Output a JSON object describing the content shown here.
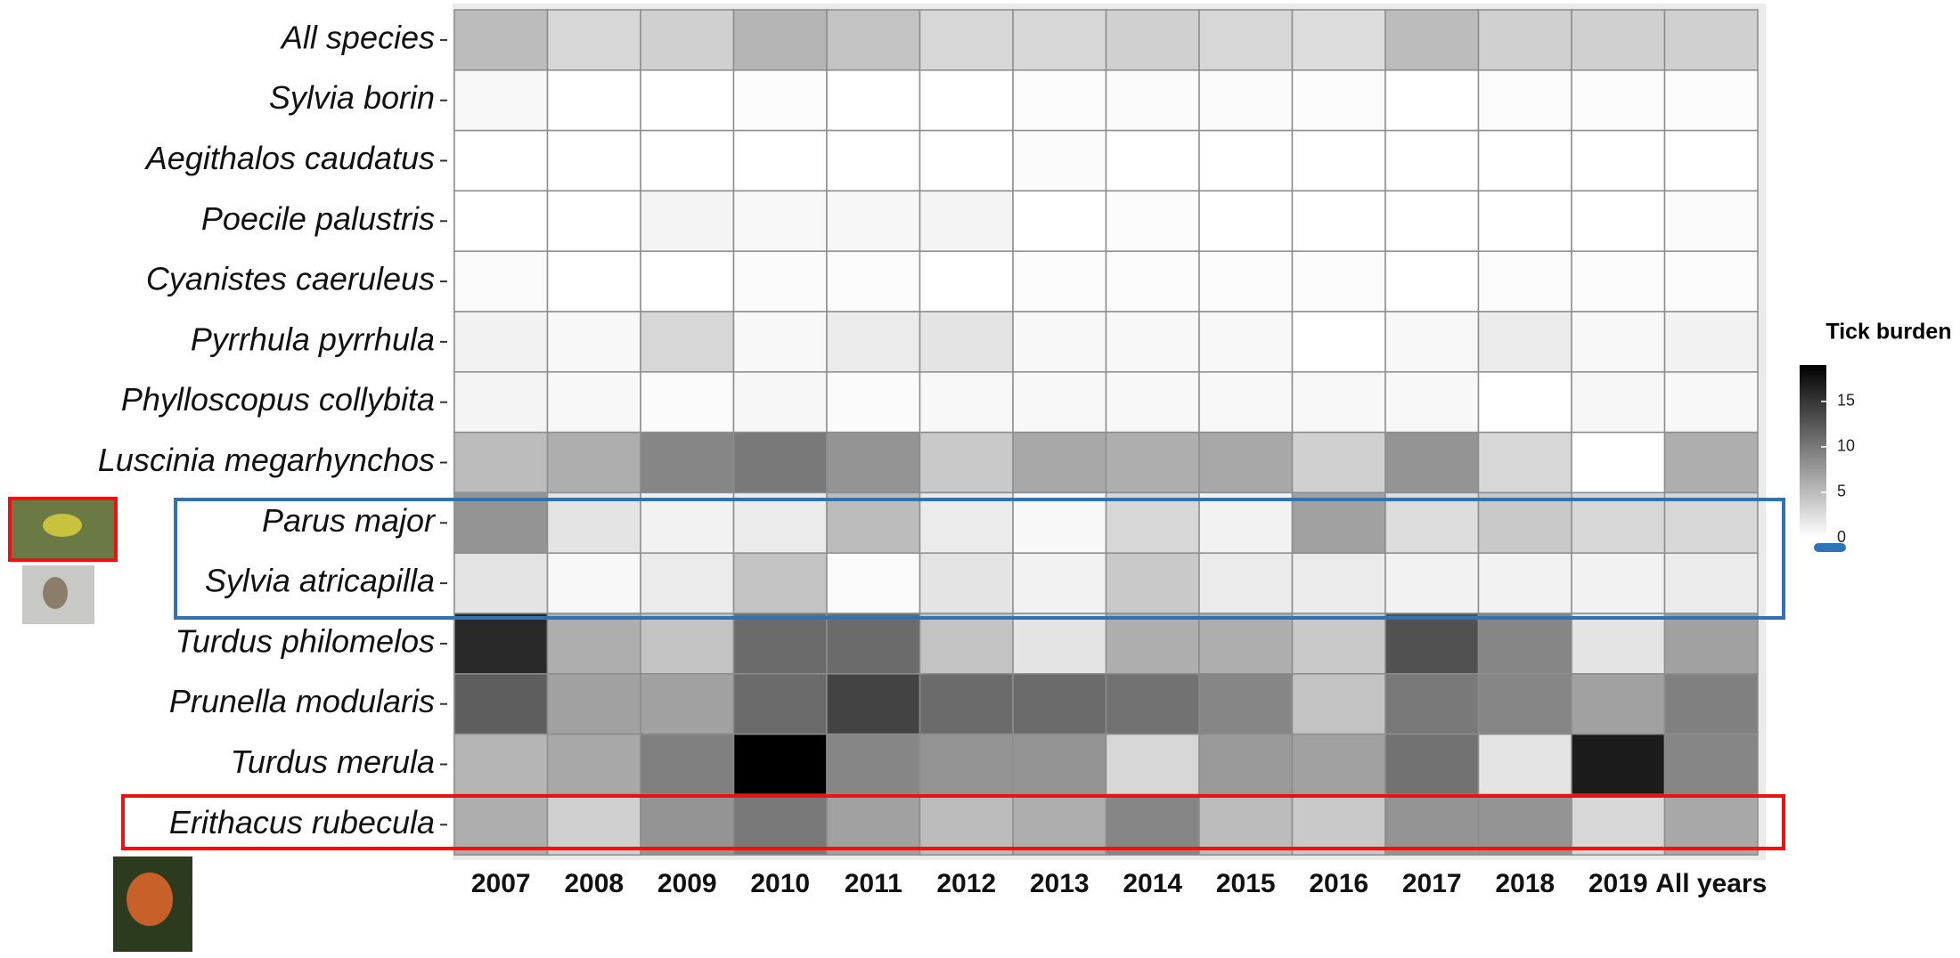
{
  "chart_data": {
    "type": "heatmap",
    "legend_title": "Tick burden",
    "categories": [
      "2007",
      "2008",
      "2009",
      "2010",
      "2011",
      "2012",
      "2013",
      "2014",
      "2015",
      "2016",
      "2017",
      "2018",
      "2019",
      "All years"
    ],
    "series": [
      {
        "name": "All species",
        "values": [
          5,
          3,
          3.5,
          5.5,
          4.5,
          3,
          3,
          3.5,
          3,
          2.5,
          5,
          3.5,
          3.5,
          3.5
        ]
      },
      {
        "name": "Sylvia borin",
        "values": [
          0.5,
          0,
          0,
          0.2,
          0,
          0,
          0.2,
          0.3,
          0.3,
          0.2,
          0,
          0.2,
          0.2,
          0.2
        ]
      },
      {
        "name": "Aegithalos caudatus",
        "values": [
          0,
          0,
          0,
          0,
          0,
          0,
          0.3,
          0,
          0,
          0,
          0,
          0,
          0,
          0
        ]
      },
      {
        "name": "Poecile palustris",
        "values": [
          0,
          0,
          0.8,
          0.5,
          0.6,
          0.8,
          0,
          0.2,
          0,
          0,
          0,
          0,
          0,
          0.3
        ]
      },
      {
        "name": "Cyanistes caeruleus",
        "values": [
          0.3,
          0,
          0,
          0.3,
          0.2,
          0,
          0.2,
          0.2,
          0.2,
          0.2,
          0,
          0.2,
          0.2,
          0.2
        ]
      },
      {
        "name": "Pyrrhula pyrrhula",
        "values": [
          1,
          0.5,
          3,
          0.5,
          1.5,
          2,
          0.5,
          0.5,
          0.5,
          0,
          0.5,
          1.5,
          0.5,
          1
        ]
      },
      {
        "name": "Phylloscopus collybita",
        "values": [
          0.8,
          0.5,
          0.3,
          0.6,
          0.3,
          0.5,
          0.5,
          0.5,
          0.5,
          0.5,
          0.5,
          0,
          0.6,
          0.5
        ]
      },
      {
        "name": "Luscinia megarhynchos",
        "values": [
          5,
          6,
          9,
          10,
          8,
          4,
          6.5,
          6,
          6.5,
          3.5,
          8,
          3,
          0,
          6
        ]
      },
      {
        "name": "Parus major",
        "values": [
          8,
          2,
          1,
          1.5,
          5,
          1.5,
          0.5,
          3,
          1,
          7,
          2.5,
          4,
          3,
          3
        ]
      },
      {
        "name": "Sylvia atricapilla",
        "values": [
          2,
          0.5,
          1.5,
          4.5,
          0.3,
          2,
          1,
          4,
          1.5,
          1.5,
          1,
          1,
          1,
          1.5
        ]
      },
      {
        "name": "Turdus philomelos",
        "values": [
          16,
          6,
          4.5,
          11,
          11,
          4.5,
          2,
          6,
          6,
          4,
          13,
          9,
          2,
          7
        ]
      },
      {
        "name": "Prunella modularis",
        "values": [
          12,
          7,
          7,
          11,
          14,
          11,
          11,
          10.5,
          9,
          4.5,
          10,
          9,
          7,
          9.5
        ]
      },
      {
        "name": "Turdus merula",
        "values": [
          5.5,
          6.5,
          9.5,
          19,
          9,
          8,
          8,
          3,
          7.5,
          7,
          10.5,
          2,
          17,
          9
        ]
      },
      {
        "name": "Erithacus rubecula",
        "values": [
          6,
          3.5,
          8,
          10,
          7,
          5,
          6,
          9,
          5,
          4,
          8,
          8,
          3,
          6.5
        ]
      }
    ],
    "colormap": {
      "low": "#ffffff",
      "high": "#000000"
    },
    "zlim": [
      0,
      19
    ],
    "zticks": [
      0,
      5,
      10,
      15
    ]
  }
}
